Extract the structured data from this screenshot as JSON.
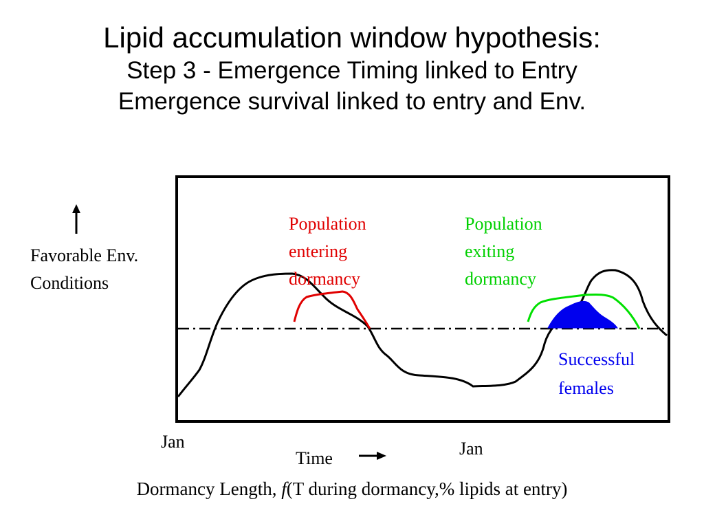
{
  "title": {
    "main": "Lipid accumulation window hypothesis:",
    "line2": "Step 3 - Emergence Timing linked to Entry",
    "line3": "Emergence survival linked to entry and Env."
  },
  "y_axis": {
    "label_line1": "Favorable Env.",
    "label_line2": "Conditions"
  },
  "annotations": {
    "entering": [
      "Population",
      "entering",
      "dormancy"
    ],
    "exiting": [
      "Population",
      "exiting",
      "dormancy"
    ],
    "successful": [
      "Successful",
      "females"
    ]
  },
  "x_axis": {
    "tick_left": "Jan",
    "tick_right": "Jan",
    "label": "Time"
  },
  "caption": {
    "prefix": "Dormancy Length, ",
    "func": "f",
    "suffix": "(T during dormancy,% lipids at entry)"
  },
  "colors": {
    "entering": "#e00000",
    "exiting": "#00e000",
    "successful": "#0000ee",
    "environment": "#000000"
  }
}
